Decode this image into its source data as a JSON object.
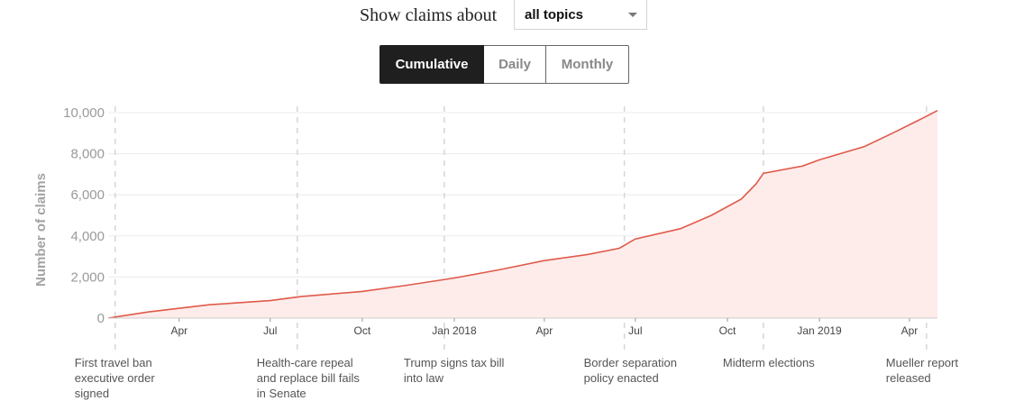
{
  "filter": {
    "label": "Show claims about",
    "selected": "all topics",
    "icon": "chevron-down-icon"
  },
  "view_toggle": {
    "options": [
      "Cumulative",
      "Daily",
      "Monthly"
    ],
    "active": "Cumulative"
  },
  "colors": {
    "line": "#e05a4a",
    "fill": "#fdecea",
    "active_button": "#1f1f1f"
  },
  "chart_data": {
    "type": "area",
    "title": "",
    "xlabel": "",
    "ylabel": "Number of claims",
    "xlim": [
      "2017-01-20",
      "2019-04-29"
    ],
    "ylim": [
      0,
      10000
    ],
    "y_ticks": [
      0,
      2000,
      4000,
      6000,
      8000,
      10000
    ],
    "y_tick_labels": [
      "0",
      "2,000",
      "4,000",
      "6,000",
      "8,000",
      "10,000"
    ],
    "x_ticks": [
      {
        "date": "2017-04-01",
        "label": "Apr"
      },
      {
        "date": "2017-07-01",
        "label": "Jul"
      },
      {
        "date": "2017-10-01",
        "label": "Oct"
      },
      {
        "date": "2018-01-01",
        "label": "Jan 2018"
      },
      {
        "date": "2018-04-01",
        "label": "Apr"
      },
      {
        "date": "2018-07-01",
        "label": "Jul"
      },
      {
        "date": "2018-10-01",
        "label": "Oct"
      },
      {
        "date": "2019-01-01",
        "label": "Jan 2019"
      },
      {
        "date": "2019-04-01",
        "label": "Apr"
      }
    ],
    "grid": true,
    "series": [
      {
        "x": [
          "2017-01-20",
          "2017-03-01",
          "2017-05-01",
          "2017-07-01",
          "2017-08-01",
          "2017-10-01",
          "2017-11-15",
          "2018-01-01",
          "2018-02-15",
          "2018-04-01",
          "2018-05-15",
          "2018-06-15",
          "2018-07-01",
          "2018-08-15",
          "2018-09-15",
          "2018-10-15",
          "2018-10-30",
          "2018-11-06",
          "2018-12-15",
          "2019-01-01",
          "2019-02-15",
          "2019-03-15",
          "2019-04-15",
          "2019-04-29"
        ],
        "y": [
          0,
          300,
          650,
          850,
          1050,
          1300,
          1600,
          1950,
          2350,
          2800,
          3100,
          3400,
          3850,
          4350,
          5000,
          5800,
          6550,
          7050,
          7400,
          7700,
          8350,
          9000,
          9750,
          10100
        ]
      }
    ],
    "events": [
      {
        "date": "2017-01-27",
        "lines": [
          "First travel ban",
          "executive order",
          "signed"
        ]
      },
      {
        "date": "2017-07-28",
        "lines": [
          "Health-care repeal",
          "and replace bill fails",
          "in Senate"
        ]
      },
      {
        "date": "2017-12-22",
        "lines": [
          "Trump signs tax bill",
          "into law"
        ]
      },
      {
        "date": "2018-06-20",
        "lines": [
          "Border separation",
          "policy enacted"
        ]
      },
      {
        "date": "2018-11-06",
        "lines": [
          "Midterm elections"
        ]
      },
      {
        "date": "2019-04-18",
        "lines": [
          "Mueller report",
          "released"
        ]
      }
    ]
  }
}
